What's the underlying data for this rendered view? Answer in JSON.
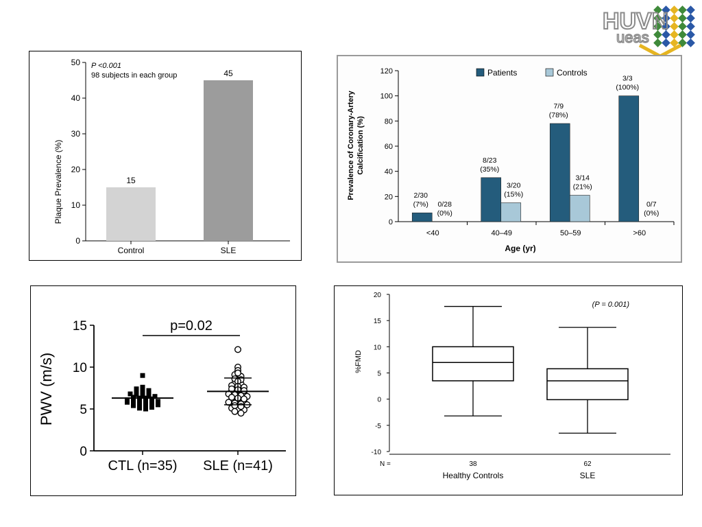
{
  "logo": {
    "text_top": "HUVN",
    "text_bottom": "ueas",
    "colors": {
      "tile_green": "#3f8a3a",
      "tile_blue": "#2a58a6",
      "tile_yellow": "#e6b521",
      "text_gray": "#8a8a8a"
    }
  },
  "colors": {
    "control_bar": "#d3d3d3",
    "sle_bar": "#9c9c9c",
    "patients": "#245c7c",
    "controls": "#a8c8d8"
  },
  "chart_data": [
    {
      "type": "bar",
      "categories": [
        "Control",
        "SLE"
      ],
      "values": [
        15,
        45
      ],
      "data_labels": [
        "15",
        "45"
      ],
      "ylabel": "Plaque Prevalence (%)",
      "ylim": [
        0,
        50
      ],
      "yticks": [
        0,
        10,
        20,
        30,
        40,
        50
      ],
      "annotations": [
        "P <0.001",
        "98 subjects in each group"
      ],
      "grid": false
    },
    {
      "type": "bar",
      "categories": [
        "<40",
        "40–49",
        "50–59",
        ">60"
      ],
      "series": [
        {
          "name": "Patients",
          "values": [
            7,
            35,
            78,
            100
          ],
          "labels": [
            [
              "2/30",
              "(7%)"
            ],
            [
              "8/23",
              "(35%)"
            ],
            [
              "7/9",
              "(78%)"
            ],
            [
              "3/3",
              "(100%)"
            ]
          ]
        },
        {
          "name": "Controls",
          "values": [
            0,
            15,
            21,
            0
          ],
          "labels": [
            [
              "0/28",
              "(0%)"
            ],
            [
              "3/20",
              "(15%)"
            ],
            [
              "3/14",
              "(21%)"
            ],
            [
              "0/7",
              "(0%)"
            ]
          ]
        }
      ],
      "xlabel": "Age (yr)",
      "ylabel": [
        "Prevalence of Coronary-Artery",
        "Calcification (%)"
      ],
      "ylim": [
        0,
        120
      ],
      "yticks": [
        0,
        20,
        40,
        60,
        80,
        100,
        120
      ],
      "legend": "top",
      "grid": false
    },
    {
      "type": "scatter",
      "categories": [
        "CTL (n=35)",
        "SLE (n=41)"
      ],
      "ylabel": "PWV (m/s)",
      "ylim": [
        0,
        15
      ],
      "yticks": [
        0,
        5,
        10,
        15
      ],
      "annotation": "p=0.02",
      "ctl": {
        "mean": 6.3,
        "values": [
          9.0,
          7.6,
          7.4,
          7.3,
          7.2,
          7.0,
          7.0,
          6.9,
          6.8,
          6.7,
          6.6,
          6.6,
          6.5,
          6.4,
          6.3,
          6.3,
          6.2,
          6.1,
          6.1,
          6.0,
          6.0,
          5.9,
          5.9,
          5.8,
          5.7,
          5.7,
          5.6,
          5.6,
          5.5,
          5.4,
          5.3,
          5.3,
          5.2,
          5.1,
          5.0
        ]
      },
      "sle": {
        "mean": 7.1,
        "sd_low": 5.5,
        "sd_high": 8.7,
        "values": [
          12.1,
          10.0,
          9.6,
          9.3,
          9.1,
          8.9,
          8.6,
          8.5,
          8.3,
          8.1,
          8.0,
          7.8,
          7.7,
          7.6,
          7.4,
          7.3,
          7.2,
          7.1,
          7.0,
          6.9,
          6.8,
          6.7,
          6.6,
          6.5,
          6.4,
          6.3,
          6.2,
          6.1,
          6.0,
          5.9,
          5.8,
          5.7,
          5.6,
          5.5,
          5.4,
          5.3,
          5.1,
          5.0,
          4.9,
          4.7,
          4.5
        ]
      },
      "grid": false
    },
    {
      "type": "box",
      "categories": [
        "Healthy Controls",
        "SLE"
      ],
      "n_label": "N =",
      "n_values": [
        "38",
        "62"
      ],
      "ylabel": "%FMD",
      "ylim": [
        -10,
        20
      ],
      "yticks": [
        -10,
        -5,
        0,
        5,
        10,
        15,
        20
      ],
      "annotation": "(P = 0.001)",
      "boxes": [
        {
          "min": -3.2,
          "q1": 3.5,
          "median": 7.0,
          "q3": 10.0,
          "max": 17.7
        },
        {
          "min": -6.5,
          "q1": -0.1,
          "median": 3.5,
          "q3": 5.8,
          "max": 13.7
        }
      ],
      "grid": false
    }
  ]
}
